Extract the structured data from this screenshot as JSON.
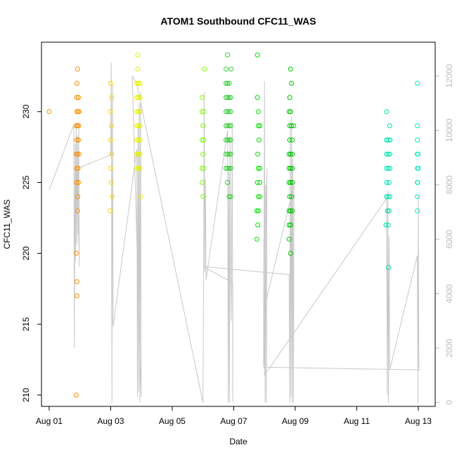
{
  "chart_data": {
    "type": "scatter",
    "title": "ATOM1 Southbound CFC11_WAS",
    "xlabel": "Date",
    "ylabel": "CFC11_WAS",
    "y2label": "",
    "xlim": [
      -0.25,
      12.55
    ],
    "ylim": [
      209.2,
      234.9
    ],
    "y2lim": [
      -140,
      13240
    ],
    "x_ticks": [
      {
        "value": 0,
        "label": "Aug 01"
      },
      {
        "value": 2,
        "label": "Aug 03"
      },
      {
        "value": 4,
        "label": "Aug 05"
      },
      {
        "value": 6,
        "label": "Aug 07"
      },
      {
        "value": 8,
        "label": "Aug 09"
      },
      {
        "value": 10,
        "label": "Aug 11"
      },
      {
        "value": 12,
        "label": "Aug 13"
      }
    ],
    "y_ticks": [
      {
        "value": 210,
        "label": "210"
      },
      {
        "value": 215,
        "label": "215"
      },
      {
        "value": 220,
        "label": "220"
      },
      {
        "value": 225,
        "label": "225"
      },
      {
        "value": 230,
        "label": "230"
      }
    ],
    "y2_ticks": [
      {
        "value": 0,
        "label": "0"
      },
      {
        "value": 2000,
        "label": "2000"
      },
      {
        "value": 4000,
        "label": "4000"
      },
      {
        "value": 6000,
        "label": "6000"
      },
      {
        "value": 8000,
        "label": "8000"
      },
      {
        "value": 10000,
        "label": "10000"
      },
      {
        "value": 12000,
        "label": "12000"
      }
    ],
    "series": [
      {
        "color": "#ff8c00",
        "points": [
          [
            0.0,
            230
          ],
          [
            0.88,
            210
          ],
          [
            0.9,
            232
          ],
          [
            0.92,
            233
          ],
          [
            0.9,
            231
          ],
          [
            0.95,
            231
          ],
          [
            0.9,
            230
          ],
          [
            0.94,
            230
          ],
          [
            0.97,
            230
          ],
          [
            0.88,
            229
          ],
          [
            0.92,
            229
          ],
          [
            0.96,
            229
          ],
          [
            0.9,
            228
          ],
          [
            0.95,
            228
          ],
          [
            0.88,
            227
          ],
          [
            0.92,
            227
          ],
          [
            0.97,
            227
          ],
          [
            0.9,
            226
          ],
          [
            0.94,
            226
          ],
          [
            0.89,
            225
          ],
          [
            0.95,
            225
          ],
          [
            0.93,
            224
          ],
          [
            0.92,
            223
          ],
          [
            0.88,
            220
          ],
          [
            0.9,
            218
          ],
          [
            0.9,
            217
          ]
        ]
      },
      {
        "color": "#ffd700",
        "points": [
          [
            2.0,
            232
          ],
          [
            2.03,
            231
          ],
          [
            1.99,
            230
          ],
          [
            2.02,
            229
          ],
          [
            2.0,
            228
          ],
          [
            2.03,
            227
          ],
          [
            2.0,
            226
          ],
          [
            2.02,
            225
          ],
          [
            2.05,
            224
          ],
          [
            1.98,
            223
          ]
        ]
      },
      {
        "color": "#e6f000",
        "points": [
          [
            2.88,
            234
          ],
          [
            2.88,
            233
          ],
          [
            2.85,
            232
          ],
          [
            2.9,
            232
          ],
          [
            2.95,
            232
          ],
          [
            2.85,
            231
          ],
          [
            2.9,
            231
          ],
          [
            2.95,
            231
          ],
          [
            2.85,
            230
          ],
          [
            2.9,
            230
          ],
          [
            2.95,
            230
          ],
          [
            2.85,
            229
          ],
          [
            2.9,
            229
          ],
          [
            2.95,
            229
          ],
          [
            2.85,
            228
          ],
          [
            2.9,
            228
          ],
          [
            2.95,
            228
          ],
          [
            2.85,
            227
          ],
          [
            2.9,
            227
          ],
          [
            2.95,
            227
          ],
          [
            2.85,
            226
          ],
          [
            2.9,
            226
          ],
          [
            2.95,
            226
          ],
          [
            2.98,
            224
          ]
        ]
      },
      {
        "color": "#7cfc00",
        "points": [
          [
            5.05,
            233
          ],
          [
            4.97,
            231
          ],
          [
            5.02,
            230
          ],
          [
            4.97,
            230
          ],
          [
            5.0,
            229
          ],
          [
            4.97,
            228
          ],
          [
            5.02,
            228
          ],
          [
            5.0,
            227
          ],
          [
            4.97,
            226
          ],
          [
            5.02,
            226
          ],
          [
            4.97,
            225
          ],
          [
            5.0,
            224
          ]
        ]
      },
      {
        "color": "#32cd32",
        "points": [
          [
            5.8,
            234
          ],
          [
            5.75,
            233
          ],
          [
            5.92,
            233
          ],
          [
            5.75,
            232
          ],
          [
            5.8,
            232
          ],
          [
            5.85,
            232
          ],
          [
            5.75,
            231
          ],
          [
            5.8,
            231
          ],
          [
            5.85,
            231
          ],
          [
            5.9,
            231
          ],
          [
            5.75,
            230
          ],
          [
            5.8,
            230
          ],
          [
            5.85,
            230
          ],
          [
            5.9,
            230
          ],
          [
            5.75,
            229
          ],
          [
            5.8,
            229
          ],
          [
            5.85,
            229
          ],
          [
            5.9,
            229
          ],
          [
            5.75,
            228
          ],
          [
            5.8,
            228
          ],
          [
            5.85,
            228
          ],
          [
            5.9,
            228
          ],
          [
            5.75,
            227
          ],
          [
            5.8,
            227
          ],
          [
            5.85,
            227
          ],
          [
            5.9,
            227
          ],
          [
            5.75,
            226
          ],
          [
            5.8,
            226
          ],
          [
            5.85,
            226
          ],
          [
            5.9,
            226
          ],
          [
            5.8,
            225
          ],
          [
            5.9,
            224
          ],
          [
            5.85,
            224
          ]
        ]
      },
      {
        "color": "#00e000",
        "points": [
          [
            6.77,
            234
          ],
          [
            6.77,
            231
          ],
          [
            6.8,
            230
          ],
          [
            6.8,
            229
          ],
          [
            6.85,
            229
          ],
          [
            6.82,
            228
          ],
          [
            6.78,
            227
          ],
          [
            6.8,
            226
          ],
          [
            6.85,
            226
          ],
          [
            6.77,
            225
          ],
          [
            6.85,
            225
          ],
          [
            6.8,
            224
          ],
          [
            6.85,
            224
          ],
          [
            6.75,
            223
          ],
          [
            6.8,
            223
          ],
          [
            6.78,
            222
          ],
          [
            6.75,
            221
          ]
        ]
      },
      {
        "color": "#00c000",
        "points": [
          [
            7.85,
            233
          ],
          [
            7.88,
            232
          ],
          [
            7.82,
            231
          ],
          [
            7.8,
            230
          ],
          [
            7.85,
            230
          ],
          [
            7.82,
            229
          ],
          [
            7.88,
            229
          ],
          [
            7.95,
            229
          ],
          [
            7.82,
            228
          ],
          [
            7.9,
            228
          ],
          [
            7.8,
            227
          ],
          [
            7.85,
            227
          ],
          [
            7.9,
            227
          ],
          [
            7.8,
            226
          ],
          [
            7.85,
            226
          ],
          [
            7.9,
            226
          ],
          [
            7.8,
            225
          ],
          [
            7.85,
            225
          ],
          [
            7.9,
            225
          ],
          [
            7.82,
            224
          ],
          [
            7.88,
            224
          ],
          [
            7.8,
            223
          ],
          [
            7.85,
            223
          ],
          [
            7.9,
            223
          ],
          [
            7.8,
            222
          ],
          [
            7.85,
            222
          ],
          [
            7.8,
            221
          ],
          [
            7.85,
            220
          ]
        ]
      },
      {
        "color": "#00ddaa",
        "points": [
          [
            10.97,
            230
          ],
          [
            11.07,
            229
          ],
          [
            10.97,
            228
          ],
          [
            11.02,
            228
          ],
          [
            11.08,
            228
          ],
          [
            10.97,
            227
          ],
          [
            11.02,
            227
          ],
          [
            11.07,
            227
          ],
          [
            10.97,
            226
          ],
          [
            11.02,
            226
          ],
          [
            11.08,
            226
          ],
          [
            10.97,
            225
          ],
          [
            11.05,
            225
          ],
          [
            10.97,
            224
          ],
          [
            11.02,
            224
          ],
          [
            11.07,
            224
          ],
          [
            11.0,
            223
          ],
          [
            11.05,
            223
          ],
          [
            10.95,
            222
          ],
          [
            11.02,
            222
          ],
          [
            11.03,
            219
          ]
        ]
      },
      {
        "color": "#00eebb",
        "points": [
          [
            11.97,
            232
          ],
          [
            11.97,
            229
          ],
          [
            11.97,
            228
          ],
          [
            11.97,
            227
          ],
          [
            11.99,
            227
          ],
          [
            11.97,
            226
          ],
          [
            12.0,
            226
          ],
          [
            11.97,
            225
          ],
          [
            11.98,
            225
          ],
          [
            11.97,
            224
          ],
          [
            11.97,
            223
          ]
        ]
      }
    ],
    "line_series": {
      "color": "#c8c8c8",
      "points": [
        [
          0.0,
          7800
        ],
        [
          0.8,
          10200
        ],
        [
          0.82,
          2000
        ],
        [
          0.84,
          9500
        ],
        [
          0.86,
          5200
        ],
        [
          0.88,
          10300
        ],
        [
          0.9,
          5800
        ],
        [
          0.92,
          9800
        ],
        [
          0.94,
          6200
        ],
        [
          0.96,
          10300
        ],
        [
          0.98,
          5000
        ],
        [
          0.92,
          8600
        ],
        [
          2.0,
          9100
        ],
        [
          2.02,
          12500
        ],
        [
          2.04,
          0
        ],
        [
          2.06,
          11700
        ],
        [
          2.08,
          2800
        ],
        [
          2.85,
          9300
        ],
        [
          2.87,
          200
        ],
        [
          2.89,
          10200
        ],
        [
          2.91,
          400
        ],
        [
          2.93,
          11000
        ],
        [
          2.95,
          0
        ],
        [
          2.97,
          11400
        ],
        [
          2.99,
          200
        ],
        [
          2.7,
          12000
        ],
        [
          2.85,
          11700
        ],
        [
          5.0,
          0
        ],
        [
          5.02,
          4500
        ],
        [
          5.04,
          11400
        ],
        [
          5.06,
          4800
        ],
        [
          5.08,
          8200
        ],
        [
          5.1,
          4500
        ],
        [
          5.8,
          10000
        ],
        [
          5.82,
          0
        ],
        [
          5.84,
          8500
        ],
        [
          5.86,
          0
        ],
        [
          5.88,
          9800
        ],
        [
          5.9,
          4600
        ],
        [
          5.92,
          3000
        ],
        [
          5.95,
          10300
        ],
        [
          5.97,
          0
        ],
        [
          5.97,
          4400
        ],
        [
          5.0,
          5000
        ],
        [
          7.8,
          4700
        ],
        [
          7.82,
          0
        ],
        [
          7.84,
          10300
        ],
        [
          7.86,
          200
        ],
        [
          7.88,
          10500
        ],
        [
          7.9,
          0
        ],
        [
          7.92,
          9000
        ],
        [
          7.94,
          0
        ],
        [
          7.96,
          8000
        ],
        [
          6.98,
          3400
        ],
        [
          7.0,
          11800
        ],
        [
          7.02,
          0
        ],
        [
          7.04,
          8000
        ],
        [
          7.06,
          0
        ],
        [
          7.08,
          8600
        ],
        [
          6.97,
          1300
        ],
        [
          6.98,
          6000
        ],
        [
          7.0,
          1000
        ],
        [
          10.97,
          7500
        ],
        [
          10.99,
          300
        ],
        [
          11.01,
          7800
        ],
        [
          11.03,
          0
        ],
        [
          11.05,
          6100
        ],
        [
          11.07,
          1200
        ],
        [
          11.97,
          5400
        ],
        [
          11.99,
          0
        ],
        [
          12.0,
          7600
        ],
        [
          12.02,
          1300
        ],
        [
          12.04,
          1200
        ],
        [
          6.97,
          1300
        ]
      ]
    }
  }
}
